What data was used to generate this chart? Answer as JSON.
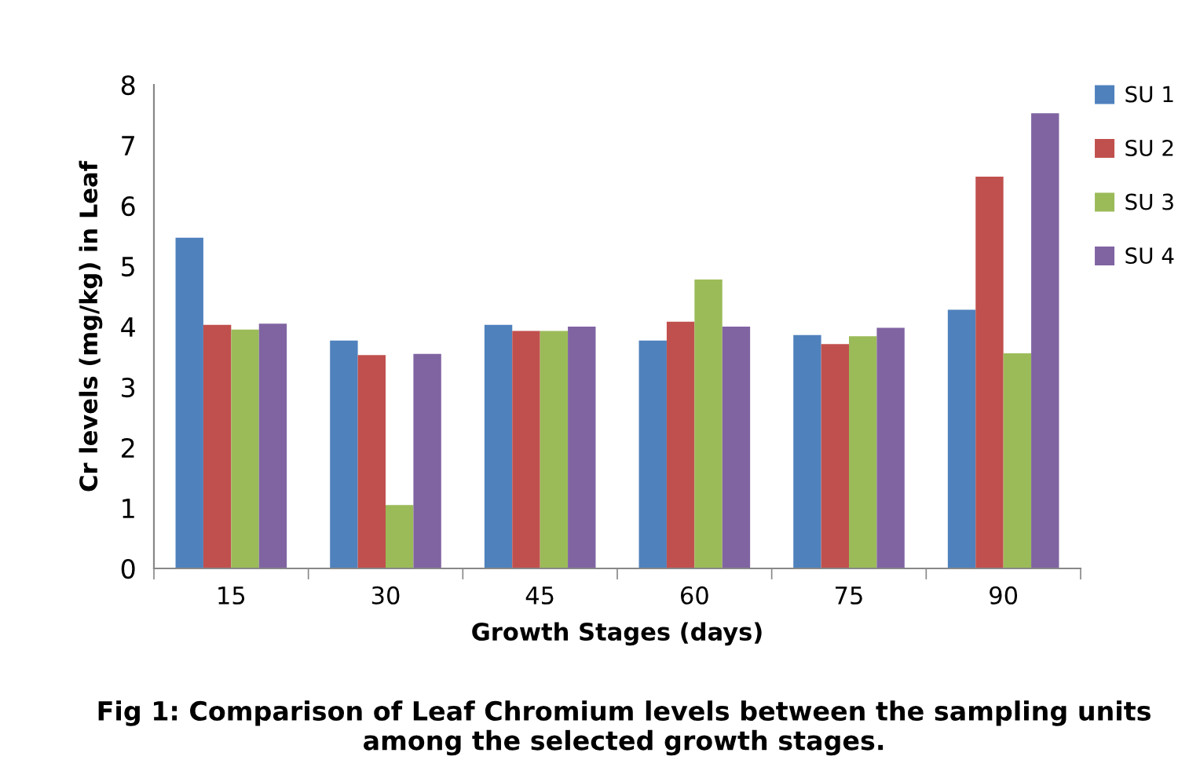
{
  "chart_data": {
    "type": "bar",
    "categories": [
      "15",
      "30",
      "45",
      "60",
      "75",
      "90"
    ],
    "xlabel": "Growth Stages (days)",
    "ylabel": "Cr levels (mg/kg) in Leaf",
    "series": [
      {
        "name": "SU 1",
        "color": "#4f81bd",
        "values": [
          5.47,
          3.77,
          4.03,
          3.77,
          3.86,
          4.28
        ]
      },
      {
        "name": "SU 2",
        "color": "#c0504d",
        "values": [
          4.03,
          3.53,
          3.93,
          4.08,
          3.71,
          6.48
        ]
      },
      {
        "name": "SU 3",
        "color": "#9bbb59",
        "values": [
          3.95,
          1.05,
          3.93,
          4.78,
          3.84,
          3.56
        ]
      },
      {
        "name": "SU 4",
        "color": "#8064a2",
        "values": [
          4.05,
          3.55,
          4.0,
          4.0,
          3.98,
          7.53
        ]
      }
    ],
    "ylim": [
      0,
      8
    ],
    "yticks": [
      0,
      1,
      2,
      3,
      4,
      5,
      6,
      7,
      8
    ],
    "grid": false,
    "legend": "top right",
    "annotations": [
      "Fig 1: Comparison of Leaf Chromium levels between the sampling units among the selected growth stages."
    ]
  }
}
